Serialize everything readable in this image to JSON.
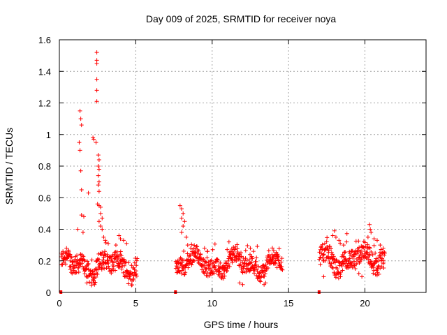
{
  "chart_data": {
    "type": "scatter",
    "title": "Day 009 of 2025, SRMTID for receiver noya",
    "xlabel": "GPS time / hours",
    "ylabel": "SRMTID / TECUs",
    "xlim": [
      0,
      24
    ],
    "ylim": [
      0,
      1.6
    ],
    "grid": true,
    "marker": "+",
    "color": "#ff0000",
    "x_ticks": [
      "0",
      "5",
      "10",
      "15",
      "20"
    ],
    "y_ticks": [
      "0",
      "0.2",
      "0.4",
      "0.6",
      "0.8",
      "1",
      "1.2",
      "1.4",
      "1.6"
    ],
    "x_tick_values": [
      0,
      5,
      10,
      15,
      20
    ],
    "y_tick_values": [
      0,
      0.2,
      0.4,
      0.6,
      0.8,
      1.0,
      1.2,
      1.4,
      1.6
    ],
    "segments": [
      {
        "start": 0.1,
        "end": 5.1,
        "baseline": 0.17,
        "spread": 0.06
      },
      {
        "start": 7.6,
        "end": 14.6,
        "baseline": 0.18,
        "spread": 0.05
      },
      {
        "start": 17.0,
        "end": 21.3,
        "baseline": 0.21,
        "spread": 0.06
      }
    ],
    "features": [
      {
        "x": 0.7,
        "y": 0.2
      },
      {
        "x": 1.0,
        "y": 0.16
      },
      {
        "x": 1.2,
        "y": 0.4
      },
      {
        "x": 1.35,
        "y": 1.15
      },
      {
        "x": 1.4,
        "y": 1.1
      },
      {
        "x": 1.45,
        "y": 1.06
      },
      {
        "x": 1.3,
        "y": 0.95
      },
      {
        "x": 1.35,
        "y": 0.9
      },
      {
        "x": 1.4,
        "y": 0.77
      },
      {
        "x": 1.45,
        "y": 0.65
      },
      {
        "x": 1.45,
        "y": 0.49
      },
      {
        "x": 1.6,
        "y": 0.48
      },
      {
        "x": 1.55,
        "y": 0.38
      },
      {
        "x": 1.9,
        "y": 0.63
      },
      {
        "x": 2.2,
        "y": 0.98
      },
      {
        "x": 2.25,
        "y": 0.97
      },
      {
        "x": 2.4,
        "y": 0.95
      },
      {
        "x": 2.45,
        "y": 1.52
      },
      {
        "x": 2.45,
        "y": 1.47
      },
      {
        "x": 2.45,
        "y": 1.45
      },
      {
        "x": 2.45,
        "y": 1.35
      },
      {
        "x": 2.45,
        "y": 1.28
      },
      {
        "x": 2.45,
        "y": 1.21
      },
      {
        "x": 2.55,
        "y": 0.87
      },
      {
        "x": 2.6,
        "y": 0.84
      },
      {
        "x": 2.55,
        "y": 0.8
      },
      {
        "x": 2.6,
        "y": 0.78
      },
      {
        "x": 2.55,
        "y": 0.74
      },
      {
        "x": 2.6,
        "y": 0.7
      },
      {
        "x": 2.55,
        "y": 0.68
      },
      {
        "x": 2.6,
        "y": 0.64
      },
      {
        "x": 2.5,
        "y": 0.56
      },
      {
        "x": 2.6,
        "y": 0.55
      },
      {
        "x": 2.7,
        "y": 0.54
      },
      {
        "x": 2.7,
        "y": 0.5
      },
      {
        "x": 2.8,
        "y": 0.47
      },
      {
        "x": 2.6,
        "y": 0.45
      },
      {
        "x": 2.7,
        "y": 0.42
      },
      {
        "x": 2.8,
        "y": 0.4
      },
      {
        "x": 2.9,
        "y": 0.35
      },
      {
        "x": 3.0,
        "y": 0.33
      },
      {
        "x": 3.2,
        "y": 0.31
      },
      {
        "x": 2.3,
        "y": 0.05
      },
      {
        "x": 2.2,
        "y": 0.08
      },
      {
        "x": 1.8,
        "y": 0.06
      },
      {
        "x": 3.9,
        "y": 0.36
      },
      {
        "x": 4.0,
        "y": 0.34
      },
      {
        "x": 4.2,
        "y": 0.33
      },
      {
        "x": 4.4,
        "y": 0.31
      },
      {
        "x": 3.7,
        "y": 0.3
      },
      {
        "x": 7.9,
        "y": 0.55
      },
      {
        "x": 8.0,
        "y": 0.53
      },
      {
        "x": 8.1,
        "y": 0.5
      },
      {
        "x": 8.0,
        "y": 0.47
      },
      {
        "x": 8.2,
        "y": 0.45
      },
      {
        "x": 8.1,
        "y": 0.42
      },
      {
        "x": 8.0,
        "y": 0.38
      },
      {
        "x": 8.3,
        "y": 0.35
      },
      {
        "x": 8.4,
        "y": 0.3
      },
      {
        "x": 8.6,
        "y": 0.28
      },
      {
        "x": 9.5,
        "y": 0.28
      },
      {
        "x": 9.7,
        "y": 0.26
      },
      {
        "x": 11.1,
        "y": 0.32
      },
      {
        "x": 12.5,
        "y": 0.28
      },
      {
        "x": 12.7,
        "y": 0.26
      },
      {
        "x": 12.9,
        "y": 0.22
      },
      {
        "x": 13.5,
        "y": 0.06
      },
      {
        "x": 13.4,
        "y": 0.05
      },
      {
        "x": 11.8,
        "y": 0.06
      },
      {
        "x": 12.0,
        "y": 0.05
      },
      {
        "x": 14.2,
        "y": 0.24
      },
      {
        "x": 17.9,
        "y": 0.36
      },
      {
        "x": 18.0,
        "y": 0.39
      },
      {
        "x": 18.1,
        "y": 0.35
      },
      {
        "x": 18.3,
        "y": 0.33
      },
      {
        "x": 18.6,
        "y": 0.3
      },
      {
        "x": 18.8,
        "y": 0.32
      },
      {
        "x": 20.3,
        "y": 0.43
      },
      {
        "x": 20.35,
        "y": 0.4
      },
      {
        "x": 20.4,
        "y": 0.38
      },
      {
        "x": 20.2,
        "y": 0.35
      },
      {
        "x": 20.6,
        "y": 0.34
      },
      {
        "x": 20.8,
        "y": 0.33
      },
      {
        "x": 21.0,
        "y": 0.3
      },
      {
        "x": 21.2,
        "y": 0.28
      },
      {
        "x": 19.6,
        "y": 0.12
      },
      {
        "x": 19.8,
        "y": 0.1
      },
      {
        "x": 17.3,
        "y": 0.1
      }
    ],
    "zero_markers": [
      0.1,
      7.6,
      17.0
    ]
  }
}
